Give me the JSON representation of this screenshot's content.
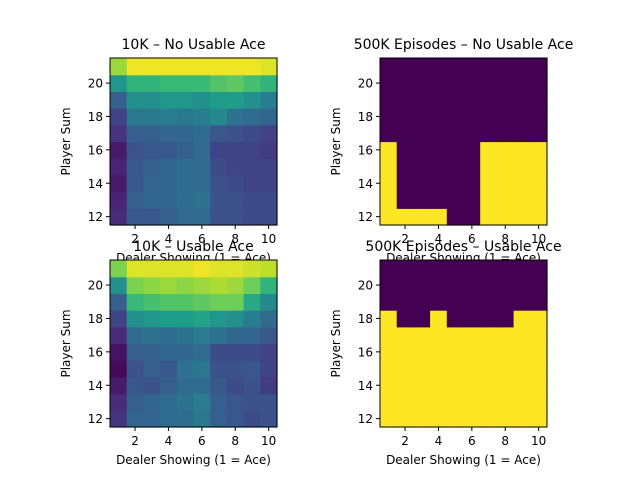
{
  "chart_data": [
    {
      "type": "heatmap",
      "title": "10K – No Usable Ace",
      "xlabel": "Dealer Showing (1 = Ace)",
      "ylabel": "Player Sum",
      "x": [
        1,
        2,
        3,
        4,
        5,
        6,
        7,
        8,
        9,
        10
      ],
      "y": [
        12,
        13,
        14,
        15,
        16,
        17,
        18,
        19,
        20,
        21
      ],
      "xticks": [
        2,
        4,
        6,
        8,
        10
      ],
      "yticks": [
        12,
        14,
        16,
        18,
        20
      ],
      "colormap": "viridis",
      "vrange": [
        -1,
        1
      ],
      "z": [
        [
          -0.75,
          -0.45,
          -0.45,
          -0.4,
          -0.3,
          -0.3,
          -0.5,
          -0.5,
          -0.55,
          -0.55
        ],
        [
          -0.8,
          -0.4,
          -0.35,
          -0.35,
          -0.3,
          -0.25,
          -0.5,
          -0.5,
          -0.55,
          -0.55
        ],
        [
          -0.85,
          -0.45,
          -0.35,
          -0.35,
          -0.3,
          -0.3,
          -0.5,
          -0.55,
          -0.6,
          -0.6
        ],
        [
          -0.8,
          -0.45,
          -0.4,
          -0.35,
          -0.3,
          -0.3,
          -0.55,
          -0.6,
          -0.6,
          -0.6
        ],
        [
          -0.85,
          -0.5,
          -0.45,
          -0.45,
          -0.4,
          -0.3,
          -0.6,
          -0.6,
          -0.6,
          -0.65
        ],
        [
          -0.7,
          -0.4,
          -0.4,
          -0.35,
          -0.35,
          -0.3,
          -0.45,
          -0.5,
          -0.55,
          -0.6
        ],
        [
          -0.6,
          -0.2,
          -0.2,
          -0.15,
          -0.2,
          -0.15,
          -0.05,
          -0.25,
          -0.3,
          -0.35
        ],
        [
          -0.4,
          0.0,
          0.0,
          0.05,
          0.05,
          0.0,
          0.1,
          0.1,
          0.0,
          -0.15
        ],
        [
          0.05,
          0.3,
          0.3,
          0.35,
          0.35,
          0.35,
          0.45,
          0.5,
          0.4,
          0.3
        ],
        [
          0.7,
          0.95,
          0.95,
          0.95,
          0.95,
          0.95,
          0.95,
          0.95,
          0.95,
          0.9
        ]
      ]
    },
    {
      "type": "heatmap",
      "title": "500K Episodes – No Usable Ace",
      "xlabel": "Dealer Showing (1 = Ace)",
      "ylabel": "Player Sum",
      "x": [
        1,
        2,
        3,
        4,
        5,
        6,
        7,
        8,
        9,
        10
      ],
      "y": [
        12,
        13,
        14,
        15,
        16,
        17,
        18,
        19,
        20,
        21
      ],
      "xticks": [
        2,
        4,
        6,
        8,
        10
      ],
      "yticks": [
        12,
        14,
        16,
        18,
        20
      ],
      "colormap": "viridis",
      "vrange": [
        0,
        1
      ],
      "z": [
        [
          1,
          1,
          1,
          1,
          0,
          0,
          1,
          1,
          1,
          1
        ],
        [
          1,
          0,
          0,
          0,
          0,
          0,
          1,
          1,
          1,
          1
        ],
        [
          1,
          0,
          0,
          0,
          0,
          0,
          1,
          1,
          1,
          1
        ],
        [
          1,
          0,
          0,
          0,
          0,
          0,
          1,
          1,
          1,
          1
        ],
        [
          1,
          0,
          0,
          0,
          0,
          0,
          1,
          1,
          1,
          1
        ],
        [
          0,
          0,
          0,
          0,
          0,
          0,
          0,
          0,
          0,
          0
        ],
        [
          0,
          0,
          0,
          0,
          0,
          0,
          0,
          0,
          0,
          0
        ],
        [
          0,
          0,
          0,
          0,
          0,
          0,
          0,
          0,
          0,
          0
        ],
        [
          0,
          0,
          0,
          0,
          0,
          0,
          0,
          0,
          0,
          0
        ],
        [
          0,
          0,
          0,
          0,
          0,
          0,
          0,
          0,
          0,
          0
        ]
      ]
    },
    {
      "type": "heatmap",
      "title": "10K – Usable Ace",
      "xlabel": "Dealer Showing (1 = Ace)",
      "ylabel": "Player Sum",
      "x": [
        1,
        2,
        3,
        4,
        5,
        6,
        7,
        8,
        9,
        10
      ],
      "y": [
        12,
        13,
        14,
        15,
        16,
        17,
        18,
        19,
        20,
        21
      ],
      "xticks": [
        2,
        4,
        6,
        8,
        10
      ],
      "yticks": [
        12,
        14,
        16,
        18,
        20
      ],
      "colormap": "viridis",
      "vrange": [
        -1,
        1
      ],
      "z": [
        [
          -0.7,
          -0.35,
          -0.35,
          -0.3,
          -0.3,
          -0.2,
          -0.4,
          -0.45,
          -0.55,
          -0.5
        ],
        [
          -0.75,
          -0.4,
          -0.35,
          -0.3,
          -0.25,
          -0.15,
          -0.4,
          -0.45,
          -0.5,
          -0.5
        ],
        [
          -0.85,
          -0.45,
          -0.5,
          -0.4,
          -0.3,
          -0.3,
          -0.45,
          -0.55,
          -0.5,
          -0.65
        ],
        [
          -0.95,
          -0.5,
          -0.4,
          -0.45,
          -0.25,
          -0.2,
          -0.5,
          -0.5,
          -0.45,
          -0.6
        ],
        [
          -0.9,
          -0.4,
          -0.4,
          -0.35,
          -0.35,
          -0.3,
          -0.55,
          -0.55,
          -0.55,
          -0.6
        ],
        [
          -0.75,
          -0.3,
          -0.25,
          -0.3,
          -0.25,
          -0.15,
          -0.25,
          -0.35,
          -0.35,
          -0.45
        ],
        [
          -0.6,
          0.0,
          0.05,
          0.1,
          0.1,
          0.15,
          0.05,
          0.0,
          -0.15,
          -0.3
        ],
        [
          -0.4,
          0.35,
          0.4,
          0.45,
          0.45,
          0.5,
          0.55,
          0.55,
          0.2,
          -0.05
        ],
        [
          0.0,
          0.6,
          0.65,
          0.7,
          0.65,
          0.7,
          0.75,
          0.7,
          0.55,
          0.3
        ],
        [
          0.6,
          0.9,
          0.9,
          0.9,
          0.9,
          0.95,
          0.9,
          0.9,
          0.85,
          0.8
        ]
      ]
    },
    {
      "type": "heatmap",
      "title": "500K Episodes – Usable Ace",
      "xlabel": "Dealer Showing (1 = Ace)",
      "ylabel": "Player Sum",
      "x": [
        1,
        2,
        3,
        4,
        5,
        6,
        7,
        8,
        9,
        10
      ],
      "y": [
        12,
        13,
        14,
        15,
        16,
        17,
        18,
        19,
        20,
        21
      ],
      "xticks": [
        2,
        4,
        6,
        8,
        10
      ],
      "yticks": [
        12,
        14,
        16,
        18,
        20
      ],
      "colormap": "viridis",
      "vrange": [
        0,
        1
      ],
      "z": [
        [
          1,
          1,
          1,
          1,
          1,
          1,
          1,
          1,
          1,
          1
        ],
        [
          1,
          1,
          1,
          1,
          1,
          1,
          1,
          1,
          1,
          1
        ],
        [
          1,
          1,
          1,
          1,
          1,
          1,
          1,
          1,
          1,
          1
        ],
        [
          1,
          1,
          1,
          1,
          1,
          1,
          1,
          1,
          1,
          1
        ],
        [
          1,
          1,
          1,
          1,
          1,
          1,
          1,
          1,
          1,
          1
        ],
        [
          1,
          1,
          1,
          1,
          1,
          1,
          1,
          1,
          1,
          1
        ],
        [
          1,
          0,
          0,
          1,
          0,
          0,
          0,
          0,
          1,
          1
        ],
        [
          0,
          0,
          0,
          0,
          0,
          0,
          0,
          0,
          0,
          0
        ],
        [
          0,
          0,
          0,
          0,
          0,
          0,
          0,
          0,
          0,
          0
        ],
        [
          0,
          0,
          0,
          0,
          0,
          0,
          0,
          0,
          0,
          0
        ]
      ]
    }
  ]
}
